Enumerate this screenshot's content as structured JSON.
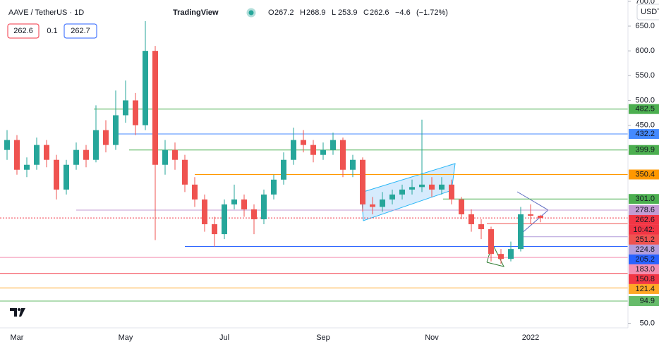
{
  "chart_data": {
    "type": "candlestick",
    "title": "AAVE / TetherUS · 1D",
    "brand": "TradingView",
    "ohlc_letters": [
      "O",
      "H",
      "L",
      "C"
    ],
    "change": {
      "value": -4.6,
      "label": "−4.6"
    },
    "change_pct": {
      "value": -1.72,
      "label": "(−1.72%)"
    },
    "quote": {
      "sell": 262.6,
      "spread": 0.1,
      "buy": 262.7
    },
    "currency": "USDT",
    "up_color": "#26a69a",
    "down_color": "#ef5350",
    "categories": [
      null,
      "Mar",
      null,
      null,
      null,
      null,
      null,
      null,
      null,
      null,
      null,
      null,
      "May",
      null,
      null,
      null,
      null,
      null,
      null,
      null,
      null,
      null,
      "Jul",
      null,
      null,
      null,
      null,
      null,
      null,
      null,
      null,
      null,
      "Sep",
      null,
      null,
      null,
      null,
      null,
      null,
      null,
      null,
      null,
      null,
      "Nov",
      null,
      null,
      null,
      null,
      null,
      null,
      null,
      null,
      null,
      "2022",
      null
    ],
    "open": [
      400,
      420,
      360,
      370,
      410,
      380,
      320,
      370,
      400,
      380,
      440,
      410,
      470,
      500,
      450,
      600,
      370,
      400,
      380,
      330,
      300,
      250,
      230,
      290,
      300,
      280,
      260,
      310,
      340,
      380,
      420,
      410,
      390,
      400,
      420,
      360,
      380,
      290,
      285,
      300,
      310,
      320,
      325,
      330,
      320,
      330,
      300,
      270,
      250,
      240,
      190,
      180,
      200,
      270,
      267.2
    ],
    "high": [
      440,
      430,
      385,
      425,
      420,
      390,
      380,
      415,
      410,
      490,
      460,
      520,
      540,
      515,
      660,
      610,
      420,
      415,
      390,
      345,
      310,
      265,
      300,
      330,
      310,
      290,
      320,
      350,
      395,
      445,
      440,
      420,
      415,
      435,
      425,
      390,
      385,
      305,
      315,
      320,
      330,
      340,
      461,
      345,
      345,
      340,
      305,
      280,
      260,
      245,
      200,
      215,
      285,
      290,
      268.9
    ],
    "low": [
      380,
      350,
      345,
      360,
      365,
      300,
      310,
      360,
      365,
      375,
      395,
      400,
      455,
      430,
      440,
      218,
      350,
      360,
      315,
      285,
      235,
      205,
      220,
      280,
      265,
      230,
      250,
      300,
      330,
      370,
      395,
      375,
      380,
      390,
      345,
      345,
      275,
      270,
      275,
      290,
      300,
      310,
      315,
      305,
      310,
      290,
      260,
      235,
      220,
      175,
      170,
      175,
      195,
      250,
      253.9
    ],
    "close": [
      420,
      360,
      370,
      410,
      380,
      320,
      370,
      400,
      380,
      440,
      410,
      470,
      500,
      450,
      600,
      370,
      400,
      380,
      330,
      300,
      250,
      230,
      290,
      300,
      280,
      260,
      310,
      340,
      380,
      420,
      410,
      390,
      400,
      420,
      360,
      380,
      290,
      285,
      300,
      310,
      320,
      325,
      330,
      320,
      330,
      300,
      270,
      250,
      240,
      190,
      180,
      200,
      270,
      267.2,
      262.6
    ],
    "ylim": [
      40.8,
      702.7
    ],
    "yticks": [
      {
        "value": 700,
        "label": "700.0"
      },
      {
        "value": 650,
        "label": "650.0"
      },
      {
        "value": 600,
        "label": "600.0"
      },
      {
        "value": 550,
        "label": "550.0"
      },
      {
        "value": 500,
        "label": "500.0"
      },
      {
        "value": 450,
        "label": "450.0"
      },
      {
        "value": 50,
        "label": "50.0"
      }
    ],
    "levels": [
      {
        "value": 482.5,
        "color": "#4caf50"
      },
      {
        "value": 432.2,
        "color": "#448aff"
      },
      {
        "value": 399.9,
        "color": "#4caf50"
      },
      {
        "value": 350.4,
        "color": "#ff9800"
      },
      {
        "value": 301,
        "label": "301.0",
        "color": "#4caf50"
      },
      {
        "value": 278.6,
        "color": "#c39bd3"
      },
      {
        "value": 262.6,
        "color": "#f23645",
        "countdown": "10:42:"
      },
      {
        "value": 251.2,
        "color": "#ef5350"
      },
      {
        "value": 224.8,
        "color": "#b39ddb"
      },
      {
        "value": 205.2,
        "color": "#2962ff"
      },
      {
        "value": 183,
        "label": "183.0",
        "color": "#f48fb1"
      },
      {
        "value": 150.8,
        "color": "#f23645"
      },
      {
        "value": 121.4,
        "color": "#ffa726"
      },
      {
        "value": 94.9,
        "color": "#66bb6a"
      }
    ]
  }
}
